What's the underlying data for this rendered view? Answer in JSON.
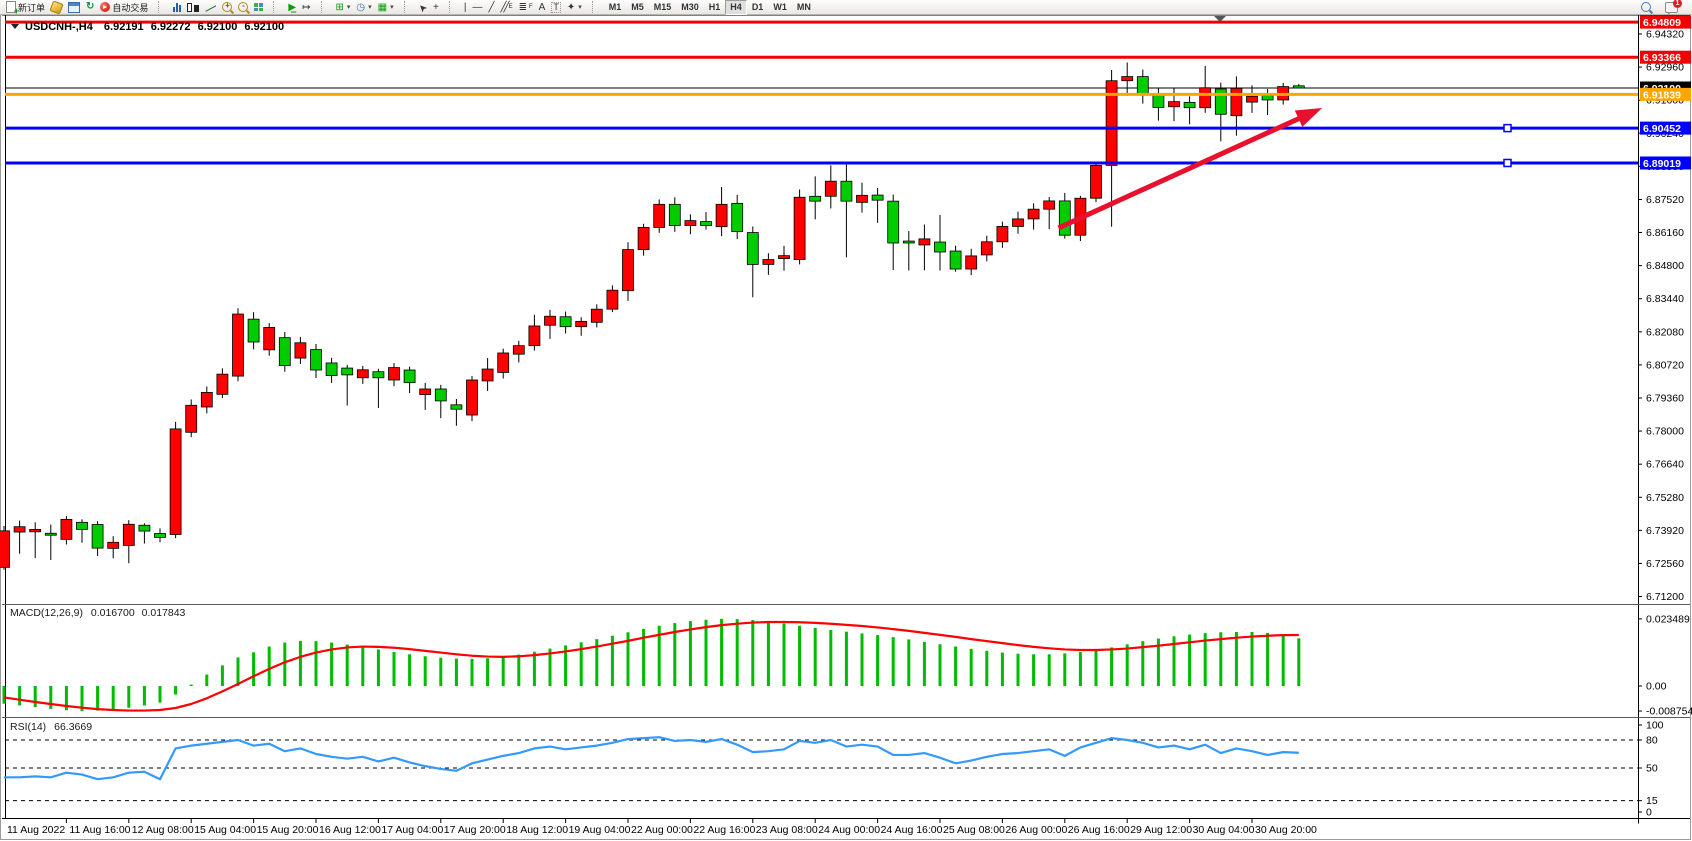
{
  "toolbar": {
    "new_order_label": "新订单",
    "autotrading_label": "自动交易",
    "text_tool": "A",
    "label_tool": "T",
    "channel_suffix": "E",
    "fibo_suffix": "F",
    "timeframes": [
      "M1",
      "M5",
      "M15",
      "M30",
      "H1",
      "H4",
      "D1",
      "W1",
      "MN"
    ],
    "active_timeframe": "H4",
    "notification_badge": "1"
  },
  "chart": {
    "symbol_period": "USDCNH-,H4",
    "ohlc": {
      "open": "6.92191",
      "high": "6.92272",
      "low": "6.92100",
      "close": "6.92100"
    }
  },
  "chart_data": {
    "type": "candlestick",
    "title": "USDCNH-,H4",
    "legend_position": "top-left",
    "grid": false,
    "colors": {
      "bull": "#ff0000",
      "bear": "#00cc00",
      "wick": "#000000",
      "macd_hist": "#00bb00",
      "macd_signal": "#ff0000",
      "rsi_line": "#3399ff",
      "hline_red": "#f00000",
      "hline_orange": "#ffa500",
      "hline_blue": "#0000ff",
      "current_price": "#000000",
      "arrow": "#e8112d"
    },
    "price_axis": {
      "ticks": [
        "6.94320",
        "6.92960",
        "6.91600",
        "6.90240",
        "6.88880",
        "6.87520",
        "6.86160",
        "6.84800",
        "6.83440",
        "6.82080",
        "6.80720",
        "6.79360",
        "6.78000",
        "6.76640",
        "6.75280",
        "6.73920",
        "6.72560",
        "6.71200"
      ],
      "visible_range": [
        6.7093,
        6.9514
      ]
    },
    "time_axis_labels": [
      "11 Aug 2022",
      "11 Aug 16:00",
      "12 Aug 08:00",
      "15 Aug 04:00",
      "15 Aug 20:00",
      "16 Aug 12:00",
      "17 Aug 04:00",
      "17 Aug 20:00",
      "18 Aug 12:00",
      "19 Aug 04:00",
      "22 Aug 00:00",
      "22 Aug 16:00",
      "23 Aug 08:00",
      "24 Aug 00:00",
      "24 Aug 16:00",
      "25 Aug 08:00",
      "26 Aug 00:00",
      "26 Aug 16:00",
      "29 Aug 12:00",
      "30 Aug 04:00",
      "30 Aug 20:00"
    ],
    "candles": [
      [
        6.724,
        6.741,
        6.723,
        6.739
      ],
      [
        6.7385,
        6.7432,
        6.7296,
        6.7407
      ],
      [
        6.7386,
        6.7425,
        6.7278,
        6.7396
      ],
      [
        6.738,
        6.7416,
        6.727,
        6.7372
      ],
      [
        6.7355,
        6.745,
        6.7334,
        6.7437
      ],
      [
        6.7425,
        6.7437,
        6.7341,
        6.7396
      ],
      [
        6.7416,
        6.743,
        6.7286,
        6.7319
      ],
      [
        6.7318,
        6.7368,
        6.7277,
        6.7343
      ],
      [
        6.733,
        6.7434,
        6.7257,
        6.7417
      ],
      [
        6.7413,
        6.7421,
        6.7338,
        6.7389
      ],
      [
        6.7379,
        6.74,
        6.7343,
        6.7363
      ],
      [
        6.7375,
        6.7838,
        6.736,
        6.7809
      ],
      [
        6.7795,
        6.793,
        6.7775,
        6.7906
      ],
      [
        6.7899,
        6.7983,
        6.7873,
        6.7959
      ],
      [
        6.7951,
        6.8058,
        6.7936,
        6.8034
      ],
      [
        6.8026,
        6.8305,
        6.8005,
        6.8281
      ],
      [
        6.826,
        6.8289,
        6.8136,
        6.8166
      ],
      [
        6.8134,
        6.8244,
        6.811,
        6.8226
      ],
      [
        6.8184,
        6.8207,
        6.8044,
        6.8069
      ],
      [
        6.81,
        6.8187,
        6.8076,
        6.8163
      ],
      [
        6.8135,
        6.8158,
        6.8018,
        6.8051
      ],
      [
        6.808,
        6.8101,
        6.7998,
        6.8028
      ],
      [
        6.8059,
        6.8072,
        6.7905,
        6.8031
      ],
      [
        6.8019,
        6.8068,
        6.7994,
        6.8052
      ],
      [
        6.8044,
        6.8056,
        6.7895,
        6.8019
      ],
      [
        6.801,
        6.808,
        6.7985,
        6.8061
      ],
      [
        6.8051,
        6.8065,
        6.7956,
        6.7999
      ],
      [
        6.795,
        6.7998,
        6.7887,
        6.7973
      ],
      [
        6.7973,
        6.799,
        6.7853,
        6.7924
      ],
      [
        6.7908,
        6.7932,
        6.7822,
        6.789
      ],
      [
        6.7866,
        6.8026,
        6.7841,
        6.801
      ],
      [
        6.8006,
        6.81,
        6.7965,
        6.8055
      ],
      [
        6.8041,
        6.8139,
        6.8016,
        6.8121
      ],
      [
        6.8116,
        6.8171,
        6.8082,
        6.8151
      ],
      [
        6.8151,
        6.8278,
        6.8131,
        6.8232
      ],
      [
        6.8235,
        6.8298,
        6.8179,
        6.8272
      ],
      [
        6.827,
        6.8291,
        6.8201,
        6.8229
      ],
      [
        6.8229,
        6.8268,
        6.8192,
        6.8251
      ],
      [
        6.8247,
        6.8321,
        6.8226,
        6.8301
      ],
      [
        6.8301,
        6.8399,
        6.8289,
        6.8379
      ],
      [
        6.8377,
        6.8576,
        6.8335,
        6.8546
      ],
      [
        6.8546,
        6.8652,
        6.8521,
        6.8637
      ],
      [
        6.8637,
        6.8752,
        6.8615,
        6.8732
      ],
      [
        6.8732,
        6.8761,
        6.8619,
        6.8645
      ],
      [
        6.8645,
        6.8691,
        6.8609,
        6.8665
      ],
      [
        6.8661,
        6.87,
        6.8628,
        6.8645
      ],
      [
        6.864,
        6.8803,
        6.8601,
        6.8732
      ],
      [
        6.8736,
        6.8771,
        6.8589,
        6.862
      ],
      [
        6.8616,
        6.8641,
        6.835,
        6.8485
      ],
      [
        6.8485,
        6.8531,
        6.8442,
        6.8505
      ],
      [
        6.8509,
        6.8561,
        6.8459,
        6.8521
      ],
      [
        6.8505,
        6.8793,
        6.8485,
        6.8761
      ],
      [
        6.8765,
        6.8847,
        6.867,
        6.8745
      ],
      [
        6.8765,
        6.8892,
        6.8715,
        6.8827
      ],
      [
        6.8827,
        6.8895,
        6.8514,
        6.8745
      ],
      [
        6.874,
        6.8821,
        6.8698,
        6.8769
      ],
      [
        6.877,
        6.8799,
        6.8656,
        6.8749
      ],
      [
        6.8745,
        6.8772,
        6.8462,
        6.8573
      ],
      [
        6.8581,
        6.8622,
        6.846,
        6.8573
      ],
      [
        6.8565,
        6.8649,
        6.8461,
        6.859
      ],
      [
        6.8577,
        6.8688,
        6.846,
        6.8536
      ],
      [
        6.854,
        6.8562,
        6.8455,
        6.8466
      ],
      [
        6.8466,
        6.8549,
        6.8441,
        6.852
      ],
      [
        6.8524,
        6.8603,
        6.8498,
        6.8578
      ],
      [
        6.8578,
        6.8661,
        6.8553,
        6.8641
      ],
      [
        6.8641,
        6.8702,
        6.8611,
        6.8672
      ],
      [
        6.8672,
        6.8736,
        6.8628,
        6.8712
      ],
      [
        6.8712,
        6.8762,
        6.863,
        6.8746
      ],
      [
        6.8746,
        6.8779,
        6.8591,
        6.8605
      ],
      [
        6.8605,
        6.8767,
        6.8581,
        6.8757
      ],
      [
        6.8757,
        6.8901,
        6.8741,
        6.8892
      ],
      [
        6.8892,
        6.9284,
        6.864,
        6.924
      ],
      [
        6.924,
        6.9315,
        6.9178,
        6.9257
      ],
      [
        6.9257,
        6.9286,
        6.9146,
        6.9181
      ],
      [
        6.9184,
        6.9211,
        6.9076,
        6.913
      ],
      [
        6.9133,
        6.9208,
        6.9074,
        6.9154
      ],
      [
        6.9151,
        6.9176,
        6.9061,
        6.9129
      ],
      [
        6.9129,
        6.9301,
        6.9108,
        6.9211
      ],
      [
        6.9206,
        6.9232,
        6.8991,
        6.9102
      ],
      [
        6.9096,
        6.9258,
        6.9014,
        6.9209
      ],
      [
        6.9152,
        6.9221,
        6.9108,
        6.9176
      ],
      [
        6.9179,
        6.9206,
        6.9099,
        6.9161
      ],
      [
        6.9161,
        6.9231,
        6.9142,
        6.9216
      ],
      [
        6.92191,
        6.92272,
        6.921,
        6.921
      ]
    ],
    "hlines": [
      {
        "price": 6.94809,
        "label": "6.94809",
        "color": "#f00000",
        "width": 3,
        "handle": false
      },
      {
        "price": 6.93366,
        "label": "6.93366",
        "color": "#f00000",
        "width": 3,
        "handle": false
      },
      {
        "price": 6.91839,
        "label": "6.91839",
        "color": "#ffa500",
        "width": 3,
        "handle": false
      },
      {
        "price": 6.90452,
        "label": "6.90452",
        "color": "#0000ff",
        "width": 3,
        "handle": true
      },
      {
        "price": 6.89019,
        "label": "6.89019",
        "color": "#0000ff",
        "width": 3,
        "handle": true
      }
    ],
    "current_price_line": {
      "price": 6.921,
      "label": "6.92100",
      "color": "#000000"
    },
    "arrow_annotation": {
      "from": {
        "bar": 67.6,
        "price": 6.8635
      },
      "to": {
        "bar": 84.5,
        "price": 6.9128
      }
    },
    "macd": {
      "label": "MACD(12,26,9)",
      "value_main": "0.016700",
      "value_signal": "0.017843",
      "scale_labels": [
        {
          "value": 0.023489,
          "text": "0.023489"
        },
        {
          "value": 0.0,
          "text": "0.00"
        },
        {
          "value": -0.008754,
          "text": "-0.008754"
        }
      ],
      "histogram": [
        -0.0062,
        -0.0068,
        -0.0074,
        -0.008,
        -0.0085,
        -0.0088,
        -0.0086,
        -0.0082,
        -0.0076,
        -0.0068,
        -0.0058,
        -0.003,
        0.0005,
        0.004,
        0.0072,
        0.01,
        0.0118,
        0.0138,
        0.0152,
        0.0158,
        0.0157,
        0.0152,
        0.0145,
        0.0137,
        0.0128,
        0.0119,
        0.0111,
        0.0104,
        0.0099,
        0.0096,
        0.0095,
        0.0097,
        0.0102,
        0.011,
        0.012,
        0.0131,
        0.0142,
        0.0153,
        0.0164,
        0.0176,
        0.0188,
        0.02,
        0.0211,
        0.022,
        0.0227,
        0.0232,
        0.0235,
        0.0234,
        0.0231,
        0.0226,
        0.0219,
        0.0211,
        0.0203,
        0.0196,
        0.019,
        0.0184,
        0.0178,
        0.0171,
        0.0163,
        0.0154,
        0.0146,
        0.0138,
        0.013,
        0.0123,
        0.0117,
        0.0113,
        0.0111,
        0.0111,
        0.0114,
        0.0119,
        0.0126,
        0.0135,
        0.0146,
        0.0157,
        0.0166,
        0.0174,
        0.018,
        0.0185,
        0.0188,
        0.0189,
        0.0189,
        0.0186,
        0.0181,
        0.0167
      ],
      "signal": [
        -0.004,
        -0.0048,
        -0.0056,
        -0.0063,
        -0.007,
        -0.0076,
        -0.0081,
        -0.0084,
        -0.0086,
        -0.0086,
        -0.0084,
        -0.0077,
        -0.0063,
        -0.0043,
        -0.0019,
        0.0007,
        0.0034,
        0.006,
        0.0083,
        0.0102,
        0.0117,
        0.0128,
        0.0135,
        0.0138,
        0.0137,
        0.0134,
        0.0129,
        0.0123,
        0.0117,
        0.0111,
        0.0106,
        0.0103,
        0.0102,
        0.0104,
        0.0108,
        0.0114,
        0.0121,
        0.0129,
        0.0138,
        0.0148,
        0.0158,
        0.0169,
        0.0179,
        0.0189,
        0.0198,
        0.0206,
        0.0213,
        0.0218,
        0.0222,
        0.0224,
        0.0224,
        0.0223,
        0.0221,
        0.0218,
        0.0214,
        0.021,
        0.0205,
        0.0199,
        0.0193,
        0.0186,
        0.0179,
        0.0172,
        0.0164,
        0.0157,
        0.015,
        0.0143,
        0.0137,
        0.0132,
        0.0128,
        0.0126,
        0.0126,
        0.0128,
        0.0131,
        0.0136,
        0.0141,
        0.0147,
        0.0153,
        0.0159,
        0.0164,
        0.0169,
        0.0173,
        0.0176,
        0.0178,
        0.01784
      ]
    },
    "rsi": {
      "label": "RSI(14)",
      "value": "66.3669",
      "levels": [
        80,
        50,
        15
      ],
      "scale_labels": [
        {
          "value": 100,
          "text": "100"
        },
        {
          "value": 80,
          "text": "80"
        },
        {
          "value": 50,
          "text": "50"
        },
        {
          "value": 15,
          "text": "15"
        },
        {
          "value": 0,
          "text": "0"
        }
      ],
      "values": [
        40,
        40,
        41,
        40,
        45,
        43,
        38,
        40,
        45,
        46,
        38,
        71,
        74,
        76,
        78,
        80,
        74,
        76,
        68,
        71,
        65,
        62,
        60,
        62,
        57,
        61,
        56,
        52,
        49,
        47,
        55,
        59,
        63,
        66,
        71,
        73,
        70,
        72,
        74,
        77,
        81,
        82,
        83,
        79,
        80,
        78,
        81,
        75,
        67,
        68,
        70,
        79,
        77,
        80,
        73,
        75,
        73,
        64,
        64,
        66,
        61,
        55,
        58,
        62,
        65,
        66,
        68,
        70,
        63,
        72,
        77,
        82,
        80,
        77,
        72,
        74,
        70,
        75,
        66,
        71,
        68,
        64,
        67,
        66.37
      ]
    }
  }
}
